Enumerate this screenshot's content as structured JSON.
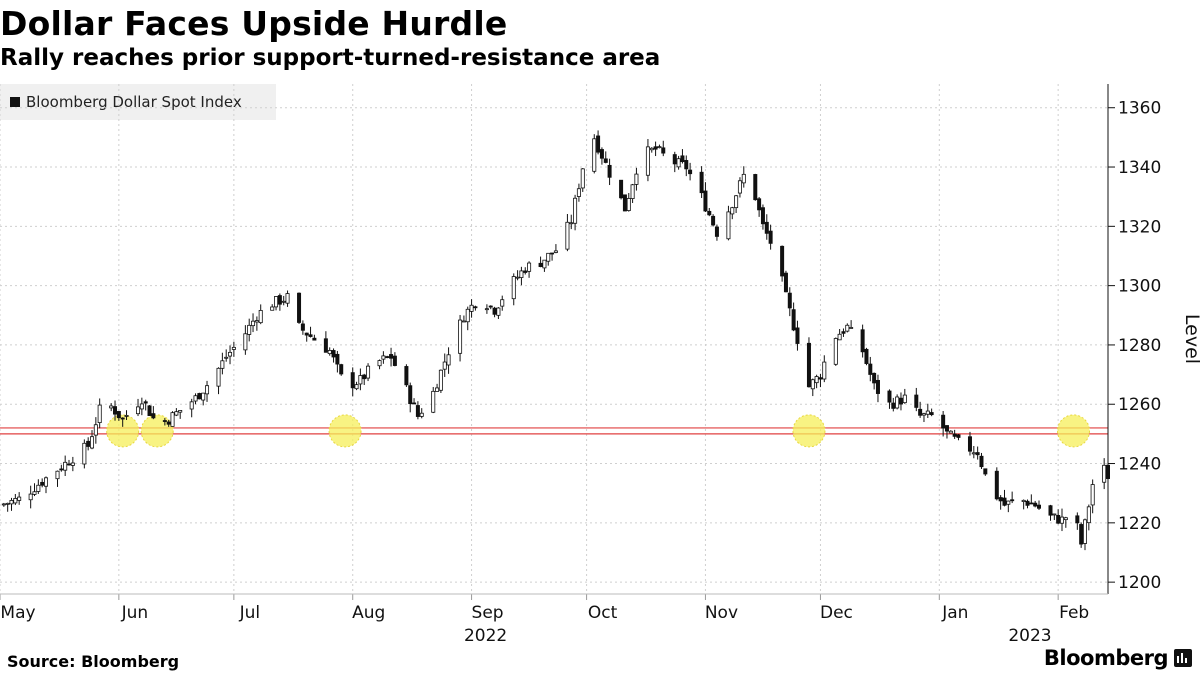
{
  "header": {
    "title": "Dollar Faces Upside Hurdle",
    "subtitle": "Rally reaches prior support-turned-resistance area"
  },
  "legend": {
    "label": "Bloomberg Dollar Spot Index"
  },
  "footer": {
    "source": "Source: Bloomberg",
    "brand": "Bloomberg"
  },
  "colors": {
    "candle": "#111111",
    "resistance": "#e04040",
    "highlight": "#f5ef5a",
    "grid": "#cfcfcf"
  },
  "chart_data": {
    "type": "candlestick",
    "series_name": "Bloomberg Dollar Spot Index",
    "ylabel": "Level",
    "ylim": [
      1196,
      1368
    ],
    "y_ticks": [
      1200,
      1220,
      1240,
      1260,
      1280,
      1300,
      1320,
      1340,
      1360
    ],
    "x_range": [
      "2022-05-01",
      "2023-02-14"
    ],
    "x_ticks": [
      {
        "date": "2022-05-01",
        "label": "May"
      },
      {
        "date": "2022-06-01",
        "label": "Jun"
      },
      {
        "date": "2022-07-01",
        "label": "Jul"
      },
      {
        "date": "2022-08-01",
        "label": "Aug"
      },
      {
        "date": "2022-09-01",
        "label": "Sep"
      },
      {
        "date": "2022-10-01",
        "label": "Oct"
      },
      {
        "date": "2022-11-01",
        "label": "Nov"
      },
      {
        "date": "2022-12-01",
        "label": "Dec"
      },
      {
        "date": "2023-01-01",
        "label": "Jan"
      },
      {
        "date": "2023-02-01",
        "label": "Feb"
      }
    ],
    "year_labels": [
      {
        "date": "2022-09-01",
        "label": "2022"
      },
      {
        "date": "2023-01-21",
        "label": "2023"
      }
    ],
    "grid": true,
    "resistance_lines": [
      1250,
      1252
    ],
    "highlight_dates": [
      "2022-06-02",
      "2022-06-11",
      "2022-07-30",
      "2022-11-28",
      "2023-02-05"
    ],
    "highlight_level": 1251,
    "close_path": [
      [
        "2022-05-01",
        1226
      ],
      [
        "2022-05-06",
        1228
      ],
      [
        "2022-05-12",
        1234
      ],
      [
        "2022-05-18",
        1240
      ],
      [
        "2022-05-24",
        1246
      ],
      [
        "2022-05-28",
        1262
      ],
      [
        "2022-06-02",
        1255
      ],
      [
        "2022-06-07",
        1262
      ],
      [
        "2022-06-11",
        1253
      ],
      [
        "2022-06-14",
        1255
      ],
      [
        "2022-06-17",
        1258
      ],
      [
        "2022-06-21",
        1262
      ],
      [
        "2022-06-25",
        1268
      ],
      [
        "2022-06-29",
        1276
      ],
      [
        "2022-07-03",
        1282
      ],
      [
        "2022-07-07",
        1290
      ],
      [
        "2022-07-11",
        1294
      ],
      [
        "2022-07-15",
        1296
      ],
      [
        "2022-07-18",
        1286
      ],
      [
        "2022-07-22",
        1282
      ],
      [
        "2022-07-26",
        1278
      ],
      [
        "2022-07-30",
        1266
      ],
      [
        "2022-08-03",
        1268
      ],
      [
        "2022-08-07",
        1274
      ],
      [
        "2022-08-11",
        1276
      ],
      [
        "2022-08-15",
        1265
      ],
      [
        "2022-08-18",
        1256
      ],
      [
        "2022-08-22",
        1264
      ],
      [
        "2022-08-26",
        1278
      ],
      [
        "2022-08-30",
        1290
      ],
      [
        "2022-09-03",
        1296
      ],
      [
        "2022-09-07",
        1292
      ],
      [
        "2022-09-11",
        1300
      ],
      [
        "2022-09-15",
        1306
      ],
      [
        "2022-09-19",
        1308
      ],
      [
        "2022-09-23",
        1312
      ],
      [
        "2022-09-27",
        1322
      ],
      [
        "2022-09-30",
        1340
      ],
      [
        "2022-10-03",
        1350
      ],
      [
        "2022-10-07",
        1338
      ],
      [
        "2022-10-11",
        1326
      ],
      [
        "2022-10-15",
        1344
      ],
      [
        "2022-10-19",
        1346
      ],
      [
        "2022-10-23",
        1342
      ],
      [
        "2022-10-27",
        1340
      ],
      [
        "2022-10-31",
        1330
      ],
      [
        "2022-11-04",
        1318
      ],
      [
        "2022-11-08",
        1328
      ],
      [
        "2022-11-12",
        1340
      ],
      [
        "2022-11-16",
        1320
      ],
      [
        "2022-11-19",
        1312
      ],
      [
        "2022-11-22",
        1296
      ],
      [
        "2022-11-25",
        1282
      ],
      [
        "2022-11-28",
        1266
      ],
      [
        "2022-12-01",
        1270
      ],
      [
        "2022-12-04",
        1282
      ],
      [
        "2022-12-08",
        1286
      ],
      [
        "2022-12-12",
        1278
      ],
      [
        "2022-12-15",
        1266
      ],
      [
        "2022-12-19",
        1260
      ],
      [
        "2022-12-23",
        1262
      ],
      [
        "2022-12-27",
        1256
      ],
      [
        "2022-12-31",
        1256
      ],
      [
        "2023-01-03",
        1250
      ],
      [
        "2023-01-07",
        1246
      ],
      [
        "2023-01-11",
        1244
      ],
      [
        "2023-01-14",
        1232
      ],
      [
        "2023-01-18",
        1226
      ],
      [
        "2023-01-22",
        1228
      ],
      [
        "2023-01-26",
        1226
      ],
      [
        "2023-01-30",
        1222
      ],
      [
        "2023-02-02",
        1221
      ],
      [
        "2023-02-05",
        1224
      ],
      [
        "2023-02-07",
        1213
      ],
      [
        "2023-02-09",
        1226
      ],
      [
        "2023-02-11",
        1240
      ],
      [
        "2023-02-13",
        1238
      ],
      [
        "2023-02-14",
        1236
      ]
    ]
  }
}
